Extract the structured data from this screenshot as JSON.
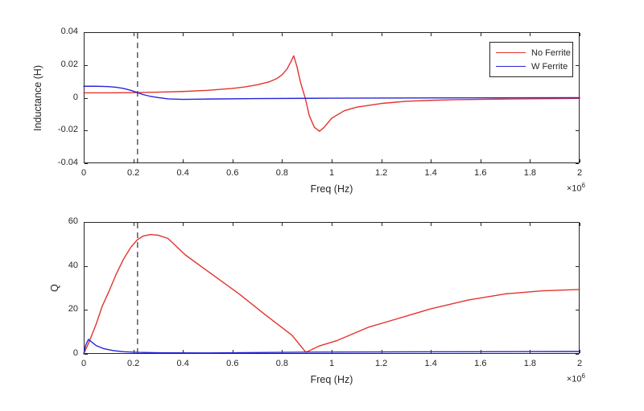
{
  "figure": {
    "background": "#ffffff",
    "axis_color": "#262626",
    "text_color": "#262626"
  },
  "legend": {
    "position": "top-right-inside-first-plot",
    "entries": [
      {
        "label": "No Ferrite",
        "color": "#e3342e"
      },
      {
        "label": "W Ferrite",
        "color": "#2626d8"
      }
    ]
  },
  "chart_data": [
    {
      "type": "line",
      "title": "",
      "xlabel": "Freq (Hz)",
      "ylabel": "Inductance (H)",
      "x_multiplier": {
        "base": "×10",
        "exp": "6"
      },
      "xlim": [
        0,
        2000000
      ],
      "ylim": [
        -0.04,
        0.04
      ],
      "grid": false,
      "x_ticks": [
        0,
        200000,
        400000,
        600000,
        800000,
        1000000,
        1200000,
        1400000,
        1600000,
        1800000,
        2000000
      ],
      "x_tick_labels": [
        "0",
        "0.2",
        "0.4",
        "0.6",
        "0.8",
        "1",
        "1.2",
        "1.4",
        "1.6",
        "1.8",
        "2"
      ],
      "y_ticks": [
        -0.04,
        -0.02,
        0,
        0.02,
        0.04
      ],
      "y_tick_labels": [
        "-0.04",
        "-0.02",
        "0",
        "0.02",
        "0.04"
      ],
      "annotations": [
        {
          "type": "vline",
          "x": 217000,
          "color": "#595959",
          "dash": "7 5",
          "width": 1.5
        }
      ],
      "series": [
        {
          "name": "No Ferrite",
          "color": "#e3342e",
          "points": [
            [
              0,
              0.003
            ],
            [
              100000,
              0.003
            ],
            [
              200000,
              0.0031
            ],
            [
              300000,
              0.0034
            ],
            [
              400000,
              0.0038
            ],
            [
              500000,
              0.0045
            ],
            [
              600000,
              0.0057
            ],
            [
              650000,
              0.0066
            ],
            [
              700000,
              0.0079
            ],
            [
              750000,
              0.0098
            ],
            [
              780000,
              0.0118
            ],
            [
              800000,
              0.014
            ],
            [
              820000,
              0.0175
            ],
            [
              835000,
              0.0218
            ],
            [
              847000,
              0.0256
            ],
            [
              860000,
              0.019
            ],
            [
              875000,
              0.009
            ],
            [
              893000,
              0
            ],
            [
              910000,
              -0.011
            ],
            [
              930000,
              -0.018
            ],
            [
              951000,
              -0.0205
            ],
            [
              970000,
              -0.018
            ],
            [
              1000000,
              -0.0125
            ],
            [
              1050000,
              -0.008
            ],
            [
              1100000,
              -0.0058
            ],
            [
              1200000,
              -0.0035
            ],
            [
              1300000,
              -0.0022
            ],
            [
              1400000,
              -0.0016
            ],
            [
              1500000,
              -0.0012
            ],
            [
              1700000,
              -0.0008
            ],
            [
              2000000,
              -0.0004
            ]
          ]
        },
        {
          "name": "W Ferrite",
          "color": "#2626d8",
          "points": [
            [
              0,
              0.007
            ],
            [
              50000,
              0.007
            ],
            [
              100000,
              0.0068
            ],
            [
              130000,
              0.0064
            ],
            [
              160000,
              0.0057
            ],
            [
              190000,
              0.0045
            ],
            [
              217000,
              0.0031
            ],
            [
              240000,
              0.0019
            ],
            [
              270000,
              0.0008
            ],
            [
              300000,
              0.0001
            ],
            [
              340000,
              -0.0007
            ],
            [
              400000,
              -0.001
            ],
            [
              500000,
              -0.0008
            ],
            [
              700000,
              -0.0005
            ],
            [
              1000000,
              -0.0003
            ],
            [
              1500000,
              -0.0001
            ],
            [
              2000000,
              0
            ]
          ]
        }
      ]
    },
    {
      "type": "line",
      "title": "",
      "xlabel": "Freq (Hz)",
      "ylabel": "Q",
      "x_multiplier": {
        "base": "×10",
        "exp": "6"
      },
      "xlim": [
        0,
        2000000
      ],
      "ylim": [
        0,
        60
      ],
      "grid": false,
      "x_ticks": [
        0,
        200000,
        400000,
        600000,
        800000,
        1000000,
        1200000,
        1400000,
        1600000,
        1800000,
        2000000
      ],
      "x_tick_labels": [
        "0",
        "0.2",
        "0.4",
        "0.6",
        "0.8",
        "1",
        "1.2",
        "1.4",
        "1.6",
        "1.8",
        "2"
      ],
      "y_ticks": [
        0,
        20,
        40,
        60
      ],
      "y_tick_labels": [
        "0",
        "20",
        "40",
        "60"
      ],
      "annotations": [
        {
          "type": "vline",
          "x": 217000,
          "color": "#595959",
          "dash": "7 5",
          "width": 1.5
        }
      ],
      "series": [
        {
          "name": "No Ferrite",
          "color": "#e3342e",
          "points": [
            [
              0,
              0
            ],
            [
              20000,
              5
            ],
            [
              50000,
              13.5
            ],
            [
              74000,
              21.5
            ],
            [
              100000,
              28
            ],
            [
              130000,
              36
            ],
            [
              160000,
              43
            ],
            [
              190000,
              48.5
            ],
            [
              217000,
              52
            ],
            [
              240000,
              53.6
            ],
            [
              270000,
              54.3
            ],
            [
              300000,
              54
            ],
            [
              340000,
              52.5
            ],
            [
              410000,
              45
            ],
            [
              520000,
              36
            ],
            [
              630000,
              27
            ],
            [
              730000,
              18
            ],
            [
              840000,
              8.5
            ],
            [
              896000,
              0.7
            ],
            [
              950000,
              3.6
            ],
            [
              1020000,
              6
            ],
            [
              1150000,
              12.2
            ],
            [
              1250000,
              15.5
            ],
            [
              1400000,
              20.5
            ],
            [
              1550000,
              24.5
            ],
            [
              1700000,
              27.3
            ],
            [
              1850000,
              28.7
            ],
            [
              2000000,
              29.3
            ]
          ]
        },
        {
          "name": "W Ferrite",
          "color": "#2626d8",
          "points": [
            [
              0,
              0
            ],
            [
              8000,
              4
            ],
            [
              19000,
              6.6
            ],
            [
              30000,
              5.6
            ],
            [
              50000,
              3.8
            ],
            [
              80000,
              2.4
            ],
            [
              120000,
              1.5
            ],
            [
              160000,
              1.0
            ],
            [
              220000,
              0.7
            ],
            [
              300000,
              0.5
            ],
            [
              500000,
              0.45
            ],
            [
              900000,
              0.8
            ],
            [
              1200000,
              0.9
            ],
            [
              1600000,
              1.0
            ],
            [
              2000000,
              1.1
            ]
          ]
        }
      ]
    }
  ]
}
